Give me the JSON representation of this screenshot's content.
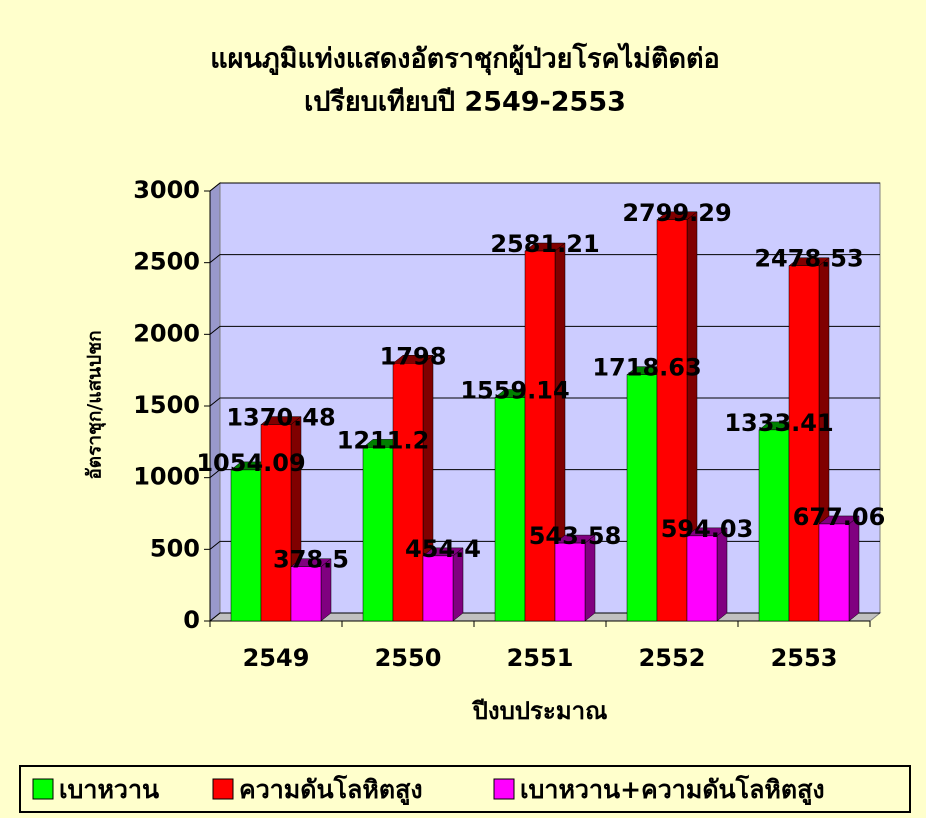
{
  "chart_data": {
    "type": "bar3d",
    "title": "แผนภูมิแท่งแสดงอัตราชุกผู้ป่วยโรคไม่ติดต่อ",
    "subtitle": "เปรียบเทียบปี 2549-2553",
    "y_label": "อัตราชุก/แสนปชก",
    "x_label": "ปีงบประมาณ",
    "categories": [
      "2549",
      "2550",
      "2551",
      "2552",
      "2553"
    ],
    "series": [
      {
        "name": "เบาหวาน",
        "color": "#00ff00",
        "values": [
          1054.09,
          1211.2,
          1559.14,
          1718.63,
          1333.41
        ]
      },
      {
        "name": "ความดันโลหิตสูง",
        "color": "#ff0000",
        "values": [
          1370.48,
          1798,
          2581.21,
          2799.29,
          2478.53
        ]
      },
      {
        "name": "เบาหวาน+ความดันโลหิตสูง",
        "color": "#ff00ff",
        "values": [
          378.5,
          454.4,
          543.58,
          594.03,
          677.06
        ]
      }
    ],
    "ylim": [
      0,
      3000
    ],
    "yticks": [
      0,
      500,
      1000,
      1500,
      2000,
      2500,
      3000
    ],
    "grid": true,
    "legend": "bottom"
  }
}
